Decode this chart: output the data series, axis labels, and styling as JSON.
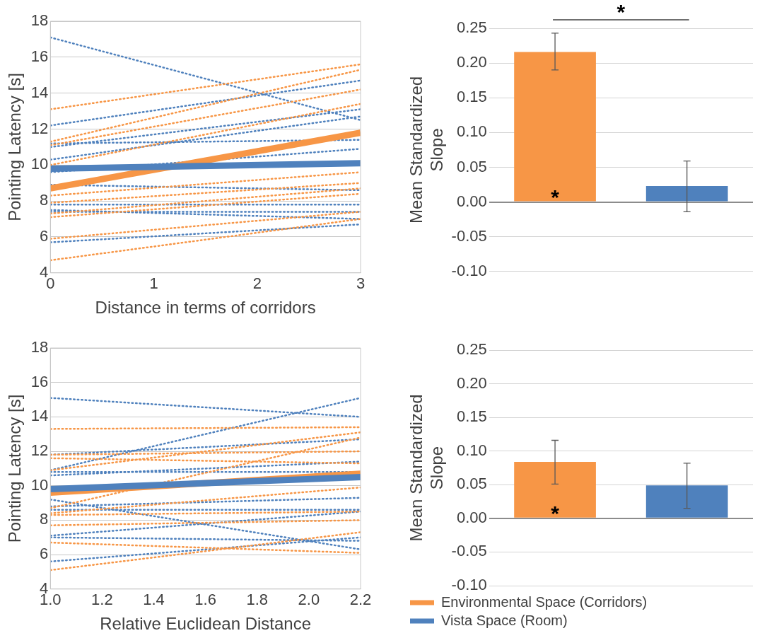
{
  "chart_data": [
    {
      "type": "line",
      "xlabel": "Distance in terms of corridors",
      "ylabel": "Pointing Latency [s]",
      "xlim": [
        0,
        3
      ],
      "xticks": [
        0,
        1,
        2,
        3
      ],
      "ylim": [
        4,
        18
      ],
      "yticks": [
        4,
        6,
        8,
        10,
        12,
        14,
        16,
        18
      ],
      "grid": "y",
      "legend": false,
      "marker": "none",
      "series": [
        {
          "color": "#4f81bd",
          "line_style": "dotted",
          "x": [
            0,
            3
          ],
          "values": [
            17.1,
            12.5
          ]
        },
        {
          "color": "#4f81bd",
          "line_style": "dotted",
          "x": [
            0,
            3
          ],
          "values": [
            12.2,
            14.7
          ]
        },
        {
          "color": "#4f81bd",
          "line_style": "dotted",
          "x": [
            0,
            3
          ],
          "values": [
            11.0,
            13.1
          ]
        },
        {
          "color": "#4f81bd",
          "line_style": "dotted",
          "x": [
            0,
            3
          ],
          "values": [
            10.3,
            12.7
          ]
        },
        {
          "color": "#4f81bd",
          "line_style": "dotted",
          "x": [
            0,
            3
          ],
          "values": [
            9.6,
            10.9
          ]
        },
        {
          "color": "#4f81bd",
          "line_style": "dotted",
          "x": [
            0,
            3
          ],
          "values": [
            11.2,
            11.4
          ]
        },
        {
          "color": "#4f81bd",
          "line_style": "dotted",
          "x": [
            0,
            3
          ],
          "values": [
            8.9,
            8.6
          ]
        },
        {
          "color": "#4f81bd",
          "line_style": "dotted",
          "x": [
            0,
            3
          ],
          "values": [
            7.8,
            7.8
          ]
        },
        {
          "color": "#4f81bd",
          "line_style": "dotted",
          "x": [
            0,
            3
          ],
          "values": [
            7.5,
            7.0
          ]
        },
        {
          "color": "#4f81bd",
          "line_style": "dotted",
          "x": [
            0,
            3
          ],
          "values": [
            7.4,
            7.4
          ]
        },
        {
          "color": "#4f81bd",
          "line_style": "dotted",
          "x": [
            0,
            3
          ],
          "values": [
            5.7,
            6.7
          ]
        },
        {
          "color": "#f79646",
          "line_style": "dotted",
          "x": [
            0,
            3
          ],
          "values": [
            13.1,
            15.6
          ]
        },
        {
          "color": "#f79646",
          "line_style": "dotted",
          "x": [
            0,
            3
          ],
          "values": [
            11.3,
            15.3
          ]
        },
        {
          "color": "#f79646",
          "line_style": "dotted",
          "x": [
            0,
            3
          ],
          "values": [
            11.1,
            14.2
          ]
        },
        {
          "color": "#f79646",
          "line_style": "dotted",
          "x": [
            0,
            3
          ],
          "values": [
            10.0,
            13.4
          ]
        },
        {
          "color": "#f79646",
          "line_style": "dotted",
          "x": [
            0,
            3
          ],
          "values": [
            8.3,
            9.6
          ]
        },
        {
          "color": "#f79646",
          "line_style": "dotted",
          "x": [
            0,
            3
          ],
          "values": [
            7.9,
            9.0
          ]
        },
        {
          "color": "#f79646",
          "line_style": "dotted",
          "x": [
            0,
            3
          ],
          "values": [
            7.3,
            8.7
          ]
        },
        {
          "color": "#f79646",
          "line_style": "dotted",
          "x": [
            0,
            3
          ],
          "values": [
            7.1,
            8.4
          ]
        },
        {
          "color": "#f79646",
          "line_style": "dotted",
          "x": [
            0,
            3
          ],
          "values": [
            5.9,
            7.4
          ]
        },
        {
          "color": "#f79646",
          "line_style": "dotted",
          "x": [
            0,
            3
          ],
          "values": [
            4.7,
            7.0
          ]
        },
        {
          "color": "#f79646",
          "line_style": "solid",
          "x": [
            0,
            3
          ],
          "values": [
            8.7,
            11.8
          ]
        },
        {
          "color": "#4f81bd",
          "line_style": "solid",
          "x": [
            0,
            3
          ],
          "values": [
            9.8,
            10.1
          ]
        }
      ]
    },
    {
      "type": "bar",
      "ylabel": "Mean Standardized Slope",
      "categories": [
        null,
        null
      ],
      "ylim": [
        -0.1,
        0.25
      ],
      "yticks": [
        {
          "value": -0.1,
          "label": "-0.10"
        },
        {
          "value": -0.05,
          "label": "-0.05"
        },
        {
          "value": 0,
          "label": "0.00"
        },
        {
          "value": 0.05,
          "label": "0.05"
        },
        {
          "value": 0.1,
          "label": "0.10"
        },
        {
          "value": 0.15,
          "label": "0.15"
        },
        {
          "value": 0.2,
          "label": "0.20"
        },
        {
          "value": 0.25,
          "label": "0.25"
        }
      ],
      "grid": "y",
      "legend": false,
      "annotations": [
        "*",
        "*"
      ],
      "series": [
        {
          "color": "#f79646",
          "values": [
            0.216,
            null
          ],
          "errors": [
            [
              0.19,
              0.243
            ],
            null
          ]
        },
        {
          "color": "#4f81bd",
          "values": [
            null,
            0.023
          ],
          "errors": [
            null,
            [
              -0.014,
              0.059
            ]
          ]
        }
      ]
    },
    {
      "type": "line",
      "xlabel": "Relative Euclidean Distance",
      "ylabel": "Pointing Latency [s]",
      "xlim": [
        1,
        2.2
      ],
      "xticks": [
        {
          "value": 1,
          "label": "1.0"
        },
        {
          "value": 1.2,
          "label": "1.2"
        },
        {
          "value": 1.4,
          "label": "1.4"
        },
        {
          "value": 1.6,
          "label": "1.6"
        },
        {
          "value": 1.8,
          "label": "1.8"
        },
        {
          "value": 2,
          "label": "2.0"
        },
        {
          "value": 2.2,
          "label": "2.2"
        }
      ],
      "ylim": [
        4,
        18
      ],
      "yticks": [
        4,
        6,
        8,
        10,
        12,
        14,
        16,
        18
      ],
      "grid": "y",
      "legend": false,
      "marker": "none",
      "series": [
        {
          "color": "#4f81bd",
          "line_style": "dotted",
          "x": [
            1,
            2.2
          ],
          "values": [
            15.1,
            14.0
          ]
        },
        {
          "color": "#4f81bd",
          "line_style": "dotted",
          "x": [
            1,
            2.2
          ],
          "values": [
            10.9,
            15.1
          ]
        },
        {
          "color": "#4f81bd",
          "line_style": "dotted",
          "x": [
            1,
            2.2
          ],
          "values": [
            11.8,
            12.7
          ]
        },
        {
          "color": "#4f81bd",
          "line_style": "dotted",
          "x": [
            1,
            2.2
          ],
          "values": [
            10.6,
            11.4
          ]
        },
        {
          "color": "#4f81bd",
          "line_style": "dotted",
          "x": [
            1,
            2.2
          ],
          "values": [
            10.8,
            10.8
          ]
        },
        {
          "color": "#4f81bd",
          "line_style": "dotted",
          "x": [
            1,
            2.2
          ],
          "values": [
            9.2,
            6.3
          ]
        },
        {
          "color": "#4f81bd",
          "line_style": "dotted",
          "x": [
            1,
            2.2
          ],
          "values": [
            8.8,
            9.3
          ]
        },
        {
          "color": "#4f81bd",
          "line_style": "dotted",
          "x": [
            1,
            2.2
          ],
          "values": [
            8.6,
            8.6
          ]
        },
        {
          "color": "#4f81bd",
          "line_style": "dotted",
          "x": [
            1,
            2.2
          ],
          "values": [
            7.1,
            8.5
          ]
        },
        {
          "color": "#4f81bd",
          "line_style": "dotted",
          "x": [
            1,
            2.2
          ],
          "values": [
            7.0,
            6.8
          ]
        },
        {
          "color": "#4f81bd",
          "line_style": "dotted",
          "x": [
            1,
            2.2
          ],
          "values": [
            5.6,
            7.0
          ]
        },
        {
          "color": "#f79646",
          "line_style": "dotted",
          "x": [
            1,
            2.2
          ],
          "values": [
            13.3,
            13.4
          ]
        },
        {
          "color": "#f79646",
          "line_style": "dotted",
          "x": [
            1,
            2.2
          ],
          "values": [
            11.8,
            12.0
          ]
        },
        {
          "color": "#f79646",
          "line_style": "dotted",
          "x": [
            1,
            2.2
          ],
          "values": [
            11.6,
            11.3
          ]
        },
        {
          "color": "#f79646",
          "line_style": "dotted",
          "x": [
            1,
            2.2
          ],
          "values": [
            10.9,
            13.1
          ]
        },
        {
          "color": "#f79646",
          "line_style": "dotted",
          "x": [
            1,
            2.2
          ],
          "values": [
            8.7,
            12.8
          ]
        },
        {
          "color": "#f79646",
          "line_style": "dotted",
          "x": [
            1,
            2.2
          ],
          "values": [
            8.4,
            9.9
          ]
        },
        {
          "color": "#f79646",
          "line_style": "dotted",
          "x": [
            1,
            2.2
          ],
          "values": [
            8.3,
            8.5
          ]
        },
        {
          "color": "#f79646",
          "line_style": "dotted",
          "x": [
            1,
            2.2
          ],
          "values": [
            7.7,
            8.0
          ]
        },
        {
          "color": "#f79646",
          "line_style": "dotted",
          "x": [
            1,
            2.2
          ],
          "values": [
            6.7,
            6.1
          ]
        },
        {
          "color": "#f79646",
          "line_style": "dotted",
          "x": [
            1,
            2.2
          ],
          "values": [
            5.1,
            7.3
          ]
        },
        {
          "color": "#f79646",
          "line_style": "solid",
          "x": [
            1,
            2.2
          ],
          "values": [
            9.6,
            10.7
          ]
        },
        {
          "color": "#4f81bd",
          "line_style": "solid",
          "x": [
            1,
            2.2
          ],
          "values": [
            9.8,
            10.5
          ]
        }
      ]
    },
    {
      "type": "bar",
      "ylabel": "Mean Standardized Slope",
      "categories": [
        null,
        null
      ],
      "ylim": [
        -0.1,
        0.25
      ],
      "yticks": [
        {
          "value": -0.1,
          "label": "-0.10"
        },
        {
          "value": -0.05,
          "label": "-0.05"
        },
        {
          "value": 0,
          "label": "0.00"
        },
        {
          "value": 0.05,
          "label": "0.05"
        },
        {
          "value": 0.1,
          "label": "0.10"
        },
        {
          "value": 0.15,
          "label": "0.15"
        },
        {
          "value": 0.2,
          "label": "0.20"
        },
        {
          "value": 0.25,
          "label": "0.25"
        }
      ],
      "grid": "y",
      "legend": "bottom",
      "annotations": [
        "*"
      ],
      "series": [
        {
          "name": "Environmental Space (Corridors)",
          "color": "#f79646",
          "values": [
            0.084,
            null
          ],
          "errors": [
            [
              0.051,
              0.116
            ],
            null
          ]
        },
        {
          "name": "Vista Space (Room)",
          "color": "#4f81bd",
          "values": [
            null,
            0.049
          ],
          "errors": [
            null,
            [
              0.015,
              0.082
            ]
          ]
        }
      ]
    }
  ]
}
